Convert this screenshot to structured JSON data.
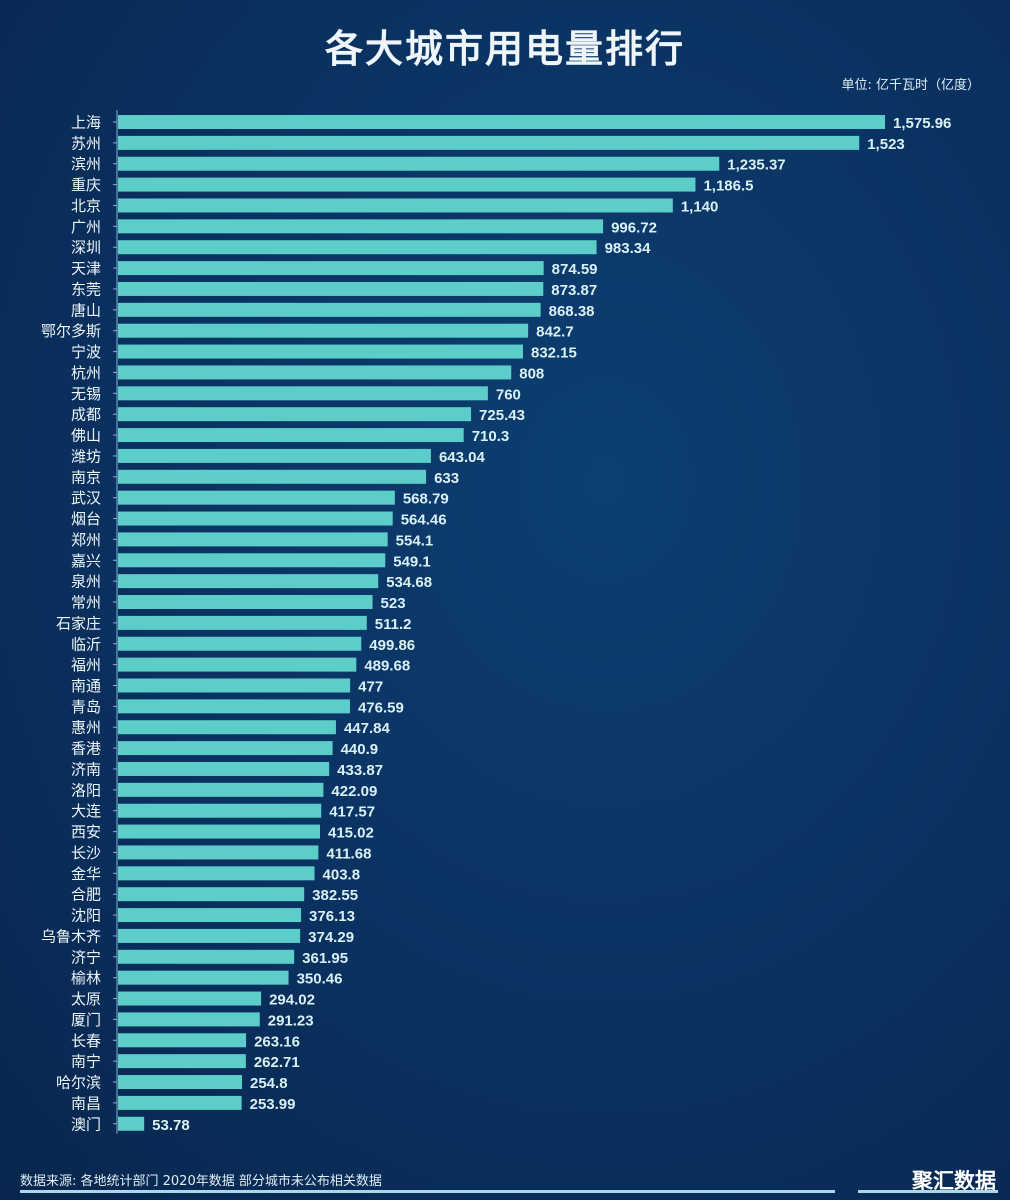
{
  "chart_data": {
    "type": "bar",
    "orientation": "horizontal",
    "title": "各大城市用电量排行",
    "unit_label": "单位: 亿千瓦时（亿度）",
    "xlabel": "",
    "ylabel": "",
    "xlim": [
      0,
      1600
    ],
    "grid": false,
    "bar_color": "#5ccdc8",
    "categories": [
      "上海",
      "苏州",
      "滨州",
      "重庆",
      "北京",
      "广州",
      "深圳",
      "天津",
      "东莞",
      "唐山",
      "鄂尔多斯",
      "宁波",
      "杭州",
      "无锡",
      "成都",
      "佛山",
      "潍坊",
      "南京",
      "武汉",
      "烟台",
      "郑州",
      "嘉兴",
      "泉州",
      "常州",
      "石家庄",
      "临沂",
      "福州",
      "南通",
      "青岛",
      "惠州",
      "香港",
      "济南",
      "洛阳",
      "大连",
      "西安",
      "长沙",
      "金华",
      "合肥",
      "沈阳",
      "乌鲁木齐",
      "济宁",
      "榆林",
      "太原",
      "厦门",
      "长春",
      "南宁",
      "哈尔滨",
      "南昌",
      "澳门"
    ],
    "values": [
      1575.96,
      1523,
      1235.37,
      1186.5,
      1140,
      996.72,
      983.34,
      874.59,
      873.87,
      868.38,
      842.7,
      832.15,
      808,
      760,
      725.43,
      710.3,
      643.04,
      633,
      568.79,
      564.46,
      554.1,
      549.1,
      534.68,
      523,
      511.2,
      499.86,
      489.68,
      477,
      476.59,
      447.84,
      440.9,
      433.87,
      422.09,
      417.57,
      415.02,
      411.68,
      403.8,
      382.55,
      376.13,
      374.29,
      361.95,
      350.46,
      294.02,
      291.23,
      263.16,
      262.71,
      254.8,
      253.99,
      53.78
    ],
    "value_labels": [
      "1,575.96",
      "1,523",
      "1,235.37",
      "1,186.5",
      "1,140",
      "996.72",
      "983.34",
      "874.59",
      "873.87",
      "868.38",
      "842.7",
      "832.15",
      "808",
      "760",
      "725.43",
      "710.3",
      "643.04",
      "633",
      "568.79",
      "564.46",
      "554.1",
      "549.1",
      "534.68",
      "523",
      "511.2",
      "499.86",
      "489.68",
      "477",
      "476.59",
      "447.84",
      "440.9",
      "433.87",
      "422.09",
      "417.57",
      "415.02",
      "411.68",
      "403.8",
      "382.55",
      "376.13",
      "374.29",
      "361.95",
      "350.46",
      "294.02",
      "291.23",
      "263.16",
      "262.71",
      "254.8",
      "253.99",
      "53.78"
    ]
  },
  "footer": {
    "source": "数据来源: 各地统计部门  2020年数据  部分城市未公布相关数据",
    "brand": "聚汇数据"
  }
}
